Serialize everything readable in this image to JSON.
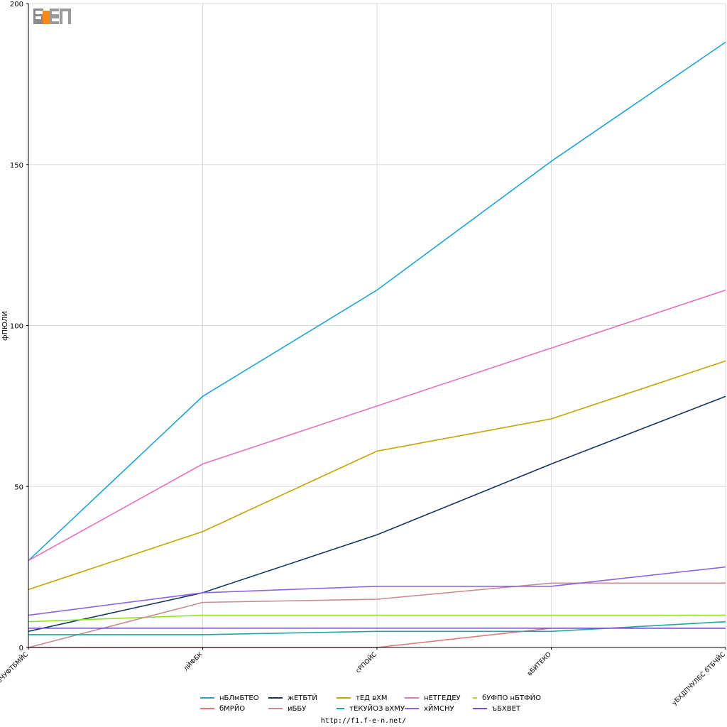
{
  "site": {
    "logo_text": "F1EN",
    "url": "http://f1.f-e-n.net/"
  },
  "chart_data": {
    "type": "line",
    "title": "",
    "xlabel": "",
    "ylabel": "фПЮЛИ",
    "ylim": [
      0,
      200
    ],
    "yticks": [
      "0",
      "50",
      "100",
      "150",
      "200"
    ],
    "categories": [
      "бЧУФТБМЙС",
      "лЙФБК",
      "сРПОЙС",
      "вБИТЕКО",
      "уБХДПЧУЛБС бТБЧЙС"
    ],
    "grid": true,
    "legend_position": "bottom",
    "series": [
      {
        "name": "нБЛмБТЕО",
        "color": "#1fa4d4",
        "values": [
          27,
          78,
          111,
          151,
          188
        ]
      },
      {
        "name": "жЕТБТЙ",
        "color": "#15375f",
        "values": [
          5,
          17,
          35,
          57,
          78
        ]
      },
      {
        "name": "тЕД вХМ",
        "color": "#c5a300",
        "values": [
          18,
          36,
          61,
          71,
          89
        ]
      },
      {
        "name": "нЕТГЕДЕУ",
        "color": "#e86fba",
        "values": [
          27,
          57,
          75,
          93,
          111
        ]
      },
      {
        "name": "бУФПО нБТФЙО",
        "color": "#8ee51d",
        "values": [
          8,
          10,
          10,
          10,
          10
        ]
      },
      {
        "name": "бМРЙО",
        "color": "#e0777a",
        "values": [
          0,
          0,
          0,
          6,
          6
        ]
      },
      {
        "name": "иББУ",
        "color": "#c98b8f",
        "values": [
          0,
          14,
          15,
          20,
          20
        ]
      },
      {
        "name": "тЕКУЙОЗ вХМУ",
        "color": "#1ea7a0",
        "values": [
          4,
          4,
          5,
          5,
          8
        ]
      },
      {
        "name": "хЙМСНУ",
        "color": "#8a63e6",
        "values": [
          10,
          17,
          19,
          19,
          25
        ]
      },
      {
        "name": "ъБХВЕТ",
        "color": "#7c4fd0",
        "values": [
          6,
          6,
          6,
          6,
          6
        ]
      }
    ]
  }
}
